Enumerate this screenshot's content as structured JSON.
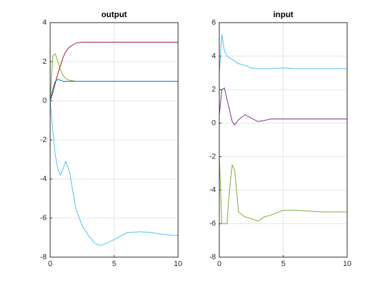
{
  "chart_data": [
    {
      "type": "line",
      "title": "output",
      "x": [
        0,
        0.2,
        0.4,
        0.6,
        0.8,
        1,
        1.2,
        1.5,
        2,
        2.5,
        3,
        3.5,
        4,
        5,
        6,
        7,
        8,
        9,
        10
      ],
      "series": [
        {
          "color": "#a2142f",
          "values": [
            0,
            0.4,
            0.9,
            1.4,
            1.8,
            2.2,
            2.5,
            2.75,
            2.95,
            3.0,
            3.0,
            3.0,
            2.99,
            3,
            3,
            3,
            3,
            3,
            3
          ]
        },
        {
          "color": "#77ac30",
          "values": [
            0,
            2.3,
            2.4,
            2.0,
            1.6,
            1.3,
            1.15,
            1.05,
            1.0,
            1,
            1,
            1,
            1,
            1,
            1,
            1,
            1,
            1,
            1
          ]
        },
        {
          "color": "#0072bd",
          "values": [
            0,
            0.6,
            1.0,
            1.1,
            1.05,
            1.0,
            1.0,
            1.0,
            1,
            1,
            1,
            1,
            1,
            1,
            1,
            1,
            1,
            1,
            1
          ]
        },
        {
          "color": "#4dbeee",
          "values": [
            0,
            -1.5,
            -2.8,
            -3.5,
            -3.8,
            -3.5,
            -3.1,
            -3.6,
            -5.5,
            -6.4,
            -6.9,
            -7.3,
            -7.4,
            -7.1,
            -6.75,
            -6.7,
            -6.75,
            -6.85,
            -6.9
          ]
        }
      ],
      "xlim": [
        0,
        10
      ],
      "xticks": [
        0,
        5,
        10
      ],
      "ylim": [
        -8,
        4
      ],
      "yticks": [
        -8,
        -6,
        -4,
        -2,
        0,
        2,
        4
      ],
      "grid": true
    },
    {
      "type": "line",
      "title": "input",
      "x": [
        0,
        0.2,
        0.4,
        0.6,
        0.8,
        1,
        1.2,
        1.5,
        2,
        2.5,
        3,
        3.5,
        4,
        5,
        6,
        7,
        8,
        9,
        10
      ],
      "series": [
        {
          "color": "#4dbeee",
          "values": [
            3,
            5.3,
            4.3,
            4.0,
            3.9,
            3.8,
            3.7,
            3.55,
            3.45,
            3.3,
            3.25,
            3.25,
            3.25,
            3.3,
            3.25,
            3.25,
            3.25,
            3.25,
            3.25
          ]
        },
        {
          "color": "#7e2f8e",
          "values": [
            0.5,
            2.0,
            2.1,
            1.4,
            0.8,
            0.1,
            -0.1,
            0.2,
            0.5,
            0.3,
            0.1,
            0.15,
            0.25,
            0.25,
            0.25,
            0.25,
            0.25,
            0.25,
            0.25
          ]
        },
        {
          "color": "#77ac30",
          "values": [
            -2,
            -6,
            -6,
            -6,
            -4,
            -2.5,
            -2.8,
            -5.3,
            -5.6,
            -5.7,
            -5.85,
            -5.6,
            -5.5,
            -5.2,
            -5.2,
            -5.25,
            -5.3,
            -5.3,
            -5.3
          ]
        }
      ],
      "xlim": [
        0,
        10
      ],
      "xticks": [
        0,
        5,
        10
      ],
      "ylim": [
        -8,
        6
      ],
      "yticks": [
        -8,
        -6,
        -4,
        -2,
        0,
        2,
        4,
        6
      ],
      "grid": true
    }
  ]
}
